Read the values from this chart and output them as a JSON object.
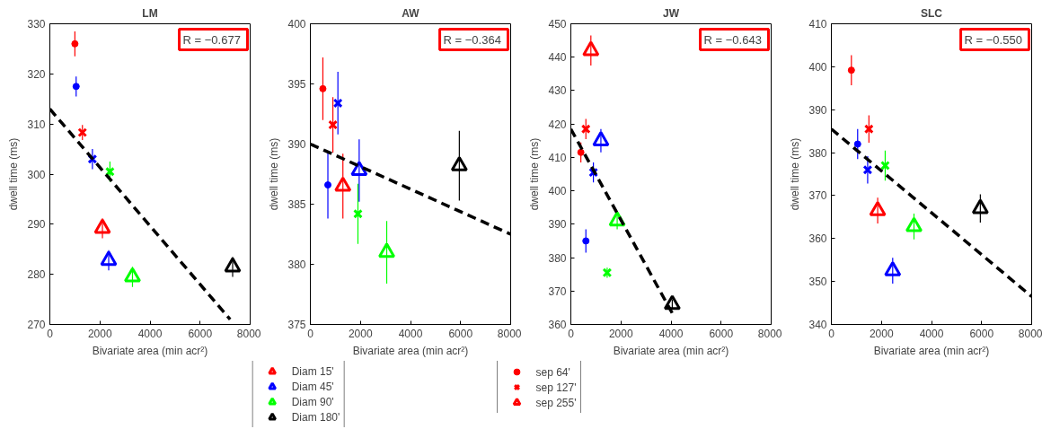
{
  "chart_data": [
    {
      "type": "scatter",
      "title": "LM",
      "xlabel": "Bivariate area (min acr²)",
      "ylabel": "dwell time (ms)",
      "xlim": [
        0,
        8000
      ],
      "xticks": [
        0,
        2000,
        4000,
        6000,
        8000
      ],
      "ylim": [
        270,
        330
      ],
      "yticks": [
        270,
        280,
        290,
        300,
        310,
        320,
        330
      ],
      "annotations": [
        "R =  −0.677",
        "sep 255'"
      ],
      "legend": "bottom",
      "series": [
        {
          "name": "sep 64'",
          "marker": "circle",
          "colors": [
            "#ff0000",
            "#0000ff"
          ],
          "x": [
            1000,
            1050
          ],
          "values": [
            326,
            317.5
          ],
          "errors": [
            2.5,
            2
          ]
        },
        {
          "name": "sep 127'",
          "marker": "cross",
          "colors": [
            "#ff0000",
            "#0000ff",
            "#00ff00"
          ],
          "x": [
            1300,
            1700,
            2400
          ],
          "values": [
            308.3,
            303,
            300.5
          ],
          "errors": [
            1.5,
            2,
            2
          ]
        },
        {
          "name": "Diam 15'",
          "marker": "triangle",
          "color": "#ff0000",
          "x": [
            2100
          ],
          "values": [
            289.2
          ],
          "errors": [
            2
          ]
        },
        {
          "name": "Diam 45'",
          "marker": "triangle",
          "color": "#0000ff",
          "x": [
            2350
          ],
          "values": [
            282.8
          ],
          "errors": [
            2
          ]
        },
        {
          "name": "Diam 90'",
          "marker": "triangle",
          "color": "#00ff00",
          "x": [
            3300
          ],
          "values": [
            279.5
          ],
          "errors": [
            2
          ]
        },
        {
          "name": "Diam 180'",
          "marker": "triangle",
          "color": "#000000",
          "x": [
            7300
          ],
          "values": [
            281.5
          ],
          "errors": [
            2
          ]
        },
        {
          "type": "line",
          "color": "#000000",
          "line_style": "dashed",
          "x": [
            0,
            7200
          ],
          "values": [
            313,
            271
          ]
        }
      ]
    },
    {
      "type": "scatter",
      "title": "AW",
      "xlabel": "Bivariate area (min acr²)",
      "ylabel": "dwell time (ms)",
      "xlim": [
        0,
        8000
      ],
      "xticks": [
        0,
        2000,
        4000,
        6000,
        8000
      ],
      "ylim": [
        375,
        400
      ],
      "yticks": [
        375,
        380,
        385,
        390,
        395,
        400
      ],
      "annotations": [
        "R =  −0.364"
      ],
      "series": [
        {
          "marker": "circle",
          "colors": [
            "#ff0000",
            "#0000ff"
          ],
          "x": [
            500,
            700
          ],
          "values": [
            394.6,
            386.6
          ],
          "errors": [
            2.6,
            2.8
          ]
        },
        {
          "marker": "cross",
          "colors": [
            "#ff0000",
            "#0000ff",
            "#00ff00"
          ],
          "x": [
            900,
            1100,
            1900
          ],
          "values": [
            391.6,
            393.4,
            384.2
          ],
          "errors": [
            2.3,
            2.6,
            2.5
          ]
        },
        {
          "marker": "triangle",
          "colors": [
            "#ff0000",
            "#0000ff",
            "#00ff00",
            "#000000"
          ],
          "x": [
            1300,
            1950,
            3050,
            5950
          ],
          "values": [
            386.5,
            387.8,
            381,
            388.2
          ],
          "errors": [
            2.7,
            2.6,
            2.6,
            2.9
          ]
        },
        {
          "type": "line",
          "color": "#000000",
          "line_style": "dashed",
          "x": [
            0,
            8000
          ],
          "values": [
            390,
            382.5
          ]
        }
      ]
    },
    {
      "type": "scatter",
      "title": "JW",
      "xlabel": "Bivariate area (min acr²)",
      "ylabel": "dwell time (ms)",
      "xlim": [
        0,
        8000
      ],
      "xticks": [
        0,
        2000,
        4000,
        6000,
        8000
      ],
      "ylim": [
        360,
        450
      ],
      "yticks": [
        360,
        370,
        380,
        390,
        400,
        410,
        420,
        430,
        440,
        450
      ],
      "annotations": [
        "R =  −0.643"
      ],
      "series": [
        {
          "marker": "circle",
          "colors": [
            "#ff0000",
            "#0000ff"
          ],
          "x": [
            400,
            600
          ],
          "values": [
            411.5,
            385
          ],
          "errors": [
            3,
            3.5
          ]
        },
        {
          "marker": "cross",
          "colors": [
            "#ff0000",
            "#0000ff",
            "#00ff00"
          ],
          "x": [
            600,
            900,
            1450
          ],
          "values": [
            418.5,
            405.5,
            375.5
          ],
          "errors": [
            3,
            3,
            1.5
          ]
        },
        {
          "marker": "triangle",
          "colors": [
            "#ff0000",
            "#0000ff",
            "#00ff00",
            "#000000"
          ],
          "x": [
            800,
            1200,
            1850,
            4050
          ],
          "values": [
            442,
            415,
            391,
            366
          ],
          "errors": [
            4.5,
            3.5,
            2.5,
            1.5
          ]
        },
        {
          "type": "line",
          "color": "#000000",
          "line_style": "dashed",
          "x": [
            0,
            4150
          ],
          "values": [
            418.5,
            362
          ]
        }
      ]
    },
    {
      "type": "scatter",
      "title": "SLC",
      "xlabel": "Bivariate area (min acr²)",
      "ylabel": "dwell time (ms)",
      "xlim": [
        0,
        8000
      ],
      "xticks": [
        0,
        2000,
        4000,
        6000,
        8000
      ],
      "ylim": [
        340,
        410
      ],
      "yticks": [
        340,
        350,
        360,
        370,
        380,
        390,
        400,
        410
      ],
      "annotations": [
        "R =  −0.550"
      ],
      "series": [
        {
          "marker": "circle",
          "colors": [
            "#ff0000",
            "#0000ff"
          ],
          "x": [
            800,
            1050
          ],
          "values": [
            399.2,
            382
          ],
          "errors": [
            3.5,
            3.5
          ]
        },
        {
          "marker": "cross",
          "colors": [
            "#ff0000",
            "#0000ff",
            "#00ff00"
          ],
          "x": [
            1500,
            1450,
            2150
          ],
          "values": [
            385.5,
            376,
            377
          ],
          "errors": [
            3.2,
            3.2,
            3.5
          ]
        },
        {
          "marker": "triangle",
          "colors": [
            "#ff0000",
            "#0000ff",
            "#00ff00",
            "#000000"
          ],
          "x": [
            1850,
            2450,
            3300,
            5950
          ],
          "values": [
            366.5,
            352.5,
            362.8,
            367
          ],
          "errors": [
            3,
            3,
            3,
            3.3
          ]
        },
        {
          "type": "line",
          "color": "#000000",
          "line_style": "dashed",
          "x": [
            0,
            8000
          ],
          "values": [
            385.5,
            346.5
          ]
        }
      ]
    }
  ]
}
